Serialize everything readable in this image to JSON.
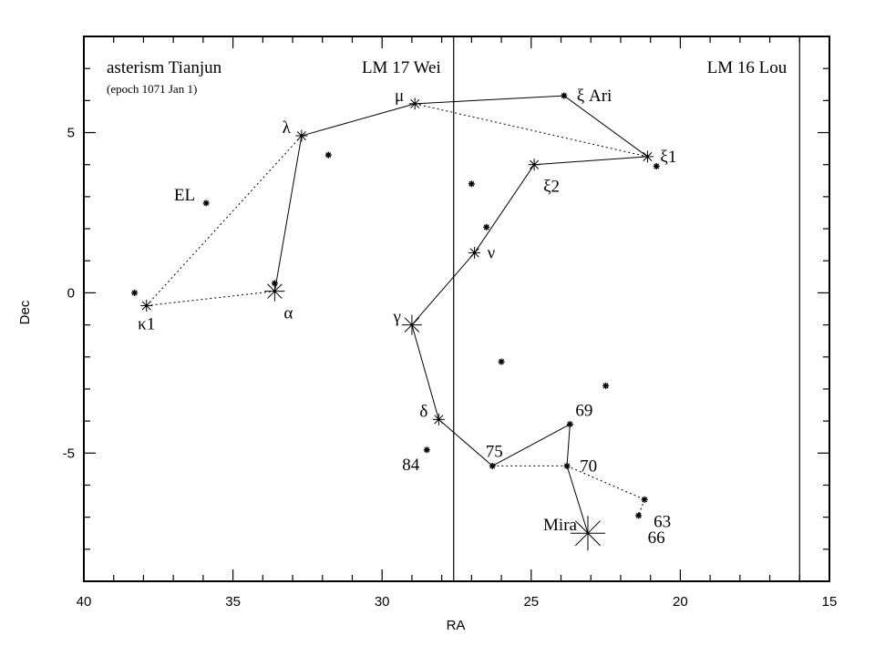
{
  "chart_data": {
    "type": "scatter",
    "title": "asterism Tianjun",
    "subtitle": "(epoch 1071 Jan 1)",
    "xlabel": "RA",
    "ylabel": "Dec",
    "xlim": [
      40,
      15
    ],
    "ylim": [
      -9,
      8
    ],
    "x_ticks": [
      40,
      35,
      30,
      25,
      20,
      15
    ],
    "y_ticks": [
      5,
      0,
      -5
    ],
    "lunar_mansions": [
      {
        "label": "LM 17 Wei",
        "boundary_ra": 27.6
      },
      {
        "label": "LM 16 Lou",
        "boundary_ra": 16.0
      }
    ],
    "stars": [
      {
        "id": "kappa1",
        "label": "κ1",
        "ra": 37.9,
        "dec": -0.4,
        "mag": "mid",
        "label_pos": "below"
      },
      {
        "id": "alpha",
        "label": "α",
        "ra": 33.6,
        "dec": 0.05,
        "mag": "big",
        "label_pos": "below-right"
      },
      {
        "id": "lambda",
        "label": "λ",
        "ra": 32.7,
        "dec": 4.9,
        "mag": "mid",
        "label_pos": "left"
      },
      {
        "id": "mu",
        "label": "μ",
        "ra": 28.9,
        "dec": 5.9,
        "mag": "mid",
        "label_pos": "left"
      },
      {
        "id": "xi_ari",
        "label": "ξ Ari",
        "ra": 23.9,
        "dec": 6.15,
        "mag": "small",
        "label_pos": "right"
      },
      {
        "id": "xi1",
        "label": "ξ1",
        "ra": 21.1,
        "dec": 4.25,
        "mag": "mid",
        "label_pos": "right"
      },
      {
        "id": "xi2",
        "label": "ξ2",
        "ra": 24.9,
        "dec": 4.0,
        "mag": "mid",
        "label_pos": "below-right"
      },
      {
        "id": "nu",
        "label": "ν",
        "ra": 26.9,
        "dec": 1.25,
        "mag": "mid",
        "label_pos": "right"
      },
      {
        "id": "gamma",
        "label": "γ",
        "ra": 29.0,
        "dec": -1.0,
        "mag": "big",
        "label_pos": "left"
      },
      {
        "id": "delta",
        "label": "δ",
        "ra": 28.1,
        "dec": -3.95,
        "mag": "mid",
        "label_pos": "left"
      },
      {
        "id": "s75",
        "label": "75",
        "ra": 26.3,
        "dec": -5.4,
        "mag": "small",
        "label_pos": "above"
      },
      {
        "id": "s69",
        "label": "69",
        "ra": 23.7,
        "dec": -4.1,
        "mag": "small",
        "label_pos": "above-right"
      },
      {
        "id": "s70",
        "label": "70",
        "ra": 23.8,
        "dec": -5.4,
        "mag": "small",
        "label_pos": "right"
      },
      {
        "id": "s63",
        "label": "63",
        "ra": 21.2,
        "dec": -6.45,
        "mag": "small",
        "label_pos": "below-right"
      },
      {
        "id": "s66",
        "label": "66",
        "ra": 21.4,
        "dec": -6.95,
        "mag": "small",
        "label_pos": "below-right"
      },
      {
        "id": "mira",
        "label": "Mira",
        "ra": 23.1,
        "dec": -7.5,
        "mag": "huge",
        "label_pos": "left"
      },
      {
        "id": "s84",
        "label": "84",
        "ra": 28.5,
        "dec": -4.9,
        "mag": "small",
        "label_pos": "below-left"
      },
      {
        "id": "el",
        "label": "EL",
        "ra": 35.9,
        "dec": 2.8,
        "mag": "small",
        "label_pos": "left"
      },
      {
        "id": "f1",
        "label": "",
        "ra": 38.3,
        "dec": 0.0,
        "mag": "small",
        "label_pos": "none"
      },
      {
        "id": "f2",
        "label": "",
        "ra": 33.6,
        "dec": 0.3,
        "mag": "small",
        "label_pos": "none"
      },
      {
        "id": "f3",
        "label": "",
        "ra": 31.8,
        "dec": 4.3,
        "mag": "small",
        "label_pos": "none"
      },
      {
        "id": "f4",
        "label": "",
        "ra": 27.0,
        "dec": 3.4,
        "mag": "small",
        "label_pos": "none"
      },
      {
        "id": "f5",
        "label": "",
        "ra": 26.5,
        "dec": 2.05,
        "mag": "small",
        "label_pos": "none"
      },
      {
        "id": "f6",
        "label": "",
        "ra": 26.0,
        "dec": -2.15,
        "mag": "small",
        "label_pos": "none"
      },
      {
        "id": "f7",
        "label": "",
        "ra": 22.5,
        "dec": -2.9,
        "mag": "small",
        "label_pos": "none"
      },
      {
        "id": "f8",
        "label": "",
        "ra": 20.8,
        "dec": 3.95,
        "mag": "small",
        "label_pos": "none"
      }
    ],
    "solid_links": [
      [
        "alpha",
        "lambda"
      ],
      [
        "lambda",
        "mu"
      ],
      [
        "mu",
        "xi_ari"
      ],
      [
        "xi_ari",
        "xi1"
      ],
      [
        "xi1",
        "xi2"
      ],
      [
        "xi2",
        "nu"
      ],
      [
        "nu",
        "gamma"
      ],
      [
        "gamma",
        "delta"
      ],
      [
        "delta",
        "s75"
      ],
      [
        "s75",
        "s69"
      ],
      [
        "s69",
        "s70"
      ],
      [
        "s70",
        "mira"
      ]
    ],
    "dotted_links": [
      [
        "kappa1",
        "lambda"
      ],
      [
        "kappa1",
        "alpha"
      ],
      [
        "mu",
        "xi1"
      ],
      [
        "s75",
        "s70"
      ],
      [
        "s70",
        "s63"
      ],
      [
        "s63",
        "s66"
      ]
    ],
    "grid": false
  }
}
